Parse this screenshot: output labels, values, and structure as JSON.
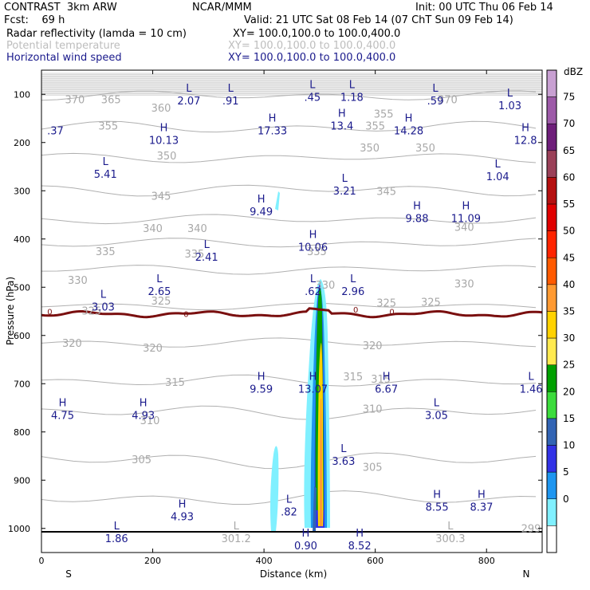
{
  "header": {
    "line1_left": "CONTRAST  3km ARW",
    "line1_mid": "NCAR/MMM",
    "line1_right": "Init: 00 UTC Thu 06 Feb 14",
    "line2_left": "Fcst:    69 h",
    "line2_right": "Valid: 21 UTC Sat 08 Feb 14 (07 ChT Sun 09 Feb 14)",
    "fields": [
      {
        "name": "Radar reflectivity (lamda = 10 cm)",
        "xy": "XY= 100.0,100.0 to 100.0,400.0",
        "color": "#000000"
      },
      {
        "name": "Potential temperature",
        "xy": "XY= 100.0,100.0 to 100.0,400.0",
        "color": "#bdbdbd"
      },
      {
        "name": "Horizontal wind speed",
        "xy": "XY= 100.0,100.0 to 100.0,400.0",
        "color": "#1a1a8c"
      }
    ]
  },
  "colors": {
    "dbz_line": "#7a0f0f",
    "wind": "#1a1a8c",
    "theta": "#b0b0b0",
    "ground": "#000000"
  },
  "chart_data": {
    "type": "cross-section",
    "xlabel": "Distance (km)",
    "ylabel": "Pressure (hPa)",
    "xlim": [
      0,
      900
    ],
    "ylim": [
      1050,
      50
    ],
    "x_ticks": [
      "0",
      "200",
      "400",
      "600",
      "800"
    ],
    "y_ticks": [
      "100",
      "200",
      "300",
      "400",
      "500",
      "600",
      "700",
      "800",
      "900",
      "1000"
    ],
    "endpoints": {
      "left": "S",
      "right": "N"
    },
    "colorbar": {
      "title": "dBZ",
      "levels": [
        "75",
        "70",
        "65",
        "60",
        "55",
        "50",
        "45",
        "40",
        "35",
        "30",
        "25",
        "20",
        "15",
        "10",
        "5",
        "0"
      ],
      "colors": [
        "#c8a0d2",
        "#9d5aa8",
        "#6e1e7a",
        "#9a4058",
        "#b51010",
        "#e00000",
        "#ff2400",
        "#ff5a00",
        "#ff9a32",
        "#ffd200",
        "#ffea50",
        "#00a000",
        "#3cdc3c",
        "#3264b4",
        "#3232e6",
        "#1e96f0",
        "#80f0ff",
        "#ffffff"
      ]
    },
    "theta_labels": [
      {
        "x": 60,
        "p": 110,
        "text": "370"
      },
      {
        "x": 125,
        "p": 110,
        "text": "365"
      },
      {
        "x": 215,
        "p": 128,
        "text": "360"
      },
      {
        "x": 730,
        "p": 110,
        "text": "370"
      },
      {
        "x": 120,
        "p": 165,
        "text": "355"
      },
      {
        "x": 600,
        "p": 165,
        "text": "355"
      },
      {
        "x": 615,
        "p": 140,
        "text": "355"
      },
      {
        "x": 590,
        "p": 210,
        "text": "350"
      },
      {
        "x": 225,
        "p": 227,
        "text": "350"
      },
      {
        "x": 690,
        "p": 210,
        "text": "350"
      },
      {
        "x": 215,
        "p": 310,
        "text": "345"
      },
      {
        "x": 620,
        "p": 300,
        "text": "345"
      },
      {
        "x": 200,
        "p": 377,
        "text": "340"
      },
      {
        "x": 280,
        "p": 377,
        "text": "340"
      },
      {
        "x": 760,
        "p": 375,
        "text": "340"
      },
      {
        "x": 115,
        "p": 425,
        "text": "335"
      },
      {
        "x": 275,
        "p": 430,
        "text": "335"
      },
      {
        "x": 495,
        "p": 425,
        "text": "335"
      },
      {
        "x": 65,
        "p": 485,
        "text": "330"
      },
      {
        "x": 510,
        "p": 495,
        "text": "330"
      },
      {
        "x": 760,
        "p": 492,
        "text": "330"
      },
      {
        "x": 90,
        "p": 548,
        "text": "325"
      },
      {
        "x": 215,
        "p": 528,
        "text": "325"
      },
      {
        "x": 620,
        "p": 532,
        "text": "325"
      },
      {
        "x": 700,
        "p": 530,
        "text": "325"
      },
      {
        "x": 55,
        "p": 615,
        "text": "320"
      },
      {
        "x": 200,
        "p": 625,
        "text": "320"
      },
      {
        "x": 595,
        "p": 620,
        "text": "320"
      },
      {
        "x": 240,
        "p": 696,
        "text": "315"
      },
      {
        "x": 560,
        "p": 685,
        "text": "315"
      },
      {
        "x": 610,
        "p": 690,
        "text": "315"
      },
      {
        "x": 195,
        "p": 776,
        "text": "310"
      },
      {
        "x": 595,
        "p": 752,
        "text": "310"
      },
      {
        "x": 180,
        "p": 857,
        "text": "305"
      },
      {
        "x": 595,
        "p": 872,
        "text": "305"
      }
    ],
    "zero_labels": [
      {
        "x": 15,
        "p": 550,
        "text": "0"
      },
      {
        "x": 260,
        "p": 555,
        "text": "0"
      },
      {
        "x": 565,
        "p": 546,
        "text": "0"
      },
      {
        "x": 630,
        "p": 550,
        "text": "0"
      }
    ],
    "wind_extrema": [
      {
        "type": "L",
        "value": "2.07",
        "x": 265,
        "p": 108
      },
      {
        "type": "L",
        "value": ".91",
        "x": 340,
        "p": 108
      },
      {
        "type": "L",
        "value": ".45",
        "x": 487,
        "p": 100
      },
      {
        "type": "L",
        "value": "1.18",
        "x": 558,
        "p": 100
      },
      {
        "type": "L",
        "value": ".59",
        "x": 708,
        "p": 108
      },
      {
        "type": "L",
        "value": "1.03",
        "x": 842,
        "p": 118
      },
      {
        "type": "",
        "value": ".37",
        "x": 25,
        "p": 170
      },
      {
        "type": "H",
        "value": "10.13",
        "x": 220,
        "p": 190
      },
      {
        "type": "H",
        "value": "17.33",
        "x": 415,
        "p": 170
      },
      {
        "type": "H",
        "value": "13.4",
        "x": 540,
        "p": 160
      },
      {
        "type": "H",
        "value": "14.28",
        "x": 660,
        "p": 170
      },
      {
        "type": "H",
        "value": "12.8",
        "x": 870,
        "p": 190
      },
      {
        "type": "L",
        "value": "5.41",
        "x": 115,
        "p": 260
      },
      {
        "type": "L",
        "value": "1.04",
        "x": 820,
        "p": 265
      },
      {
        "type": "L",
        "value": "3.21",
        "x": 545,
        "p": 295
      },
      {
        "type": "H",
        "value": "9.49",
        "x": 395,
        "p": 338
      },
      {
        "type": "H",
        "value": "9.88",
        "x": 675,
        "p": 352
      },
      {
        "type": "H",
        "value": "11.09",
        "x": 763,
        "p": 352
      },
      {
        "type": "H",
        "value": "10.06",
        "x": 488,
        "p": 411
      },
      {
        "type": "L",
        "value": "2.41",
        "x": 297,
        "p": 432
      },
      {
        "type": "L",
        "value": "2.65",
        "x": 212,
        "p": 503
      },
      {
        "type": "L",
        "value": ".62",
        "x": 488,
        "p": 503
      },
      {
        "type": "L",
        "value": "2.96",
        "x": 560,
        "p": 503
      },
      {
        "type": "L",
        "value": "3.03",
        "x": 111,
        "p": 535
      },
      {
        "type": "H",
        "value": "9.59",
        "x": 395,
        "p": 705
      },
      {
        "type": "H",
        "value": "13.07",
        "x": 488,
        "p": 705
      },
      {
        "type": "H",
        "value": "6.67",
        "x": 620,
        "p": 705
      },
      {
        "type": "L",
        "value": "1.46",
        "x": 880,
        "p": 705
      },
      {
        "type": "H",
        "value": "4.75",
        "x": 38,
        "p": 760
      },
      {
        "type": "H",
        "value": "4.93",
        "x": 183,
        "p": 760
      },
      {
        "type": "L",
        "value": "3.05",
        "x": 710,
        "p": 760
      },
      {
        "type": "L",
        "value": "3.63",
        "x": 543,
        "p": 855
      },
      {
        "type": "L",
        "value": ".82",
        "x": 445,
        "p": 960
      },
      {
        "type": "H",
        "value": "4.93",
        "x": 253,
        "p": 970
      },
      {
        "type": "H",
        "value": "8.55",
        "x": 711,
        "p": 950
      },
      {
        "type": "H",
        "value": "8.37",
        "x": 791,
        "p": 950
      },
      {
        "type": "L",
        "value": "1.86",
        "x": 135,
        "p": 1015
      },
      {
        "type": "H",
        "value": "0.90",
        "x": 475,
        "p": 1030
      },
      {
        "type": "H",
        "value": "8.52",
        "x": 572,
        "p": 1030
      }
    ],
    "theta_extrema": [
      {
        "type": "L",
        "value": "301.2",
        "x": 350,
        "p": 1015
      },
      {
        "type": "L",
        "value": "300.3",
        "x": 735,
        "p": 1015
      },
      {
        "type": "",
        "value": "299",
        "x": 880,
        "p": 995
      }
    ]
  }
}
